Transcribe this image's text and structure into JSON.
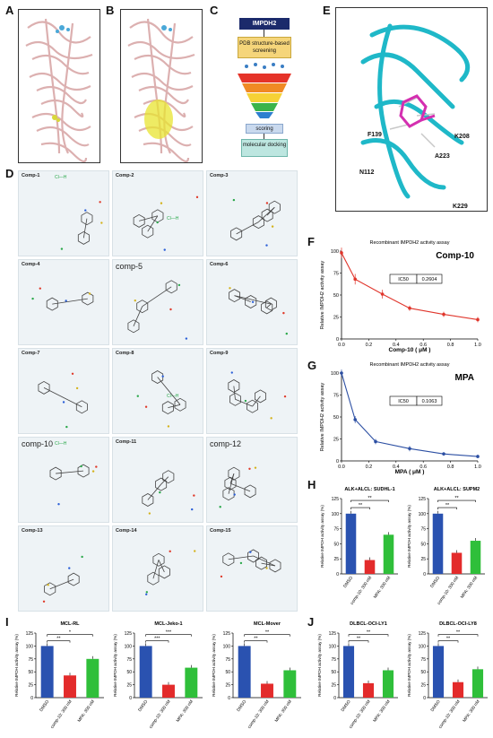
{
  "panel_labels": {
    "A": "A",
    "B": "B",
    "C": "C",
    "D": "D",
    "E": "E",
    "F": "F",
    "G": "G",
    "H": "H",
    "I": "I",
    "J": "J"
  },
  "flowchart": {
    "target": "IMPDH2",
    "step1": "PDB structure-based screening",
    "step2": "scoring",
    "step3": "molecular docking"
  },
  "residues": [
    "F139",
    "K208",
    "A223",
    "N112",
    "K229"
  ],
  "compounds": [
    {
      "name": "Comp-1",
      "salt": "Cl—H"
    },
    {
      "name": "Comp-2",
      "salt": "Cl—H"
    },
    {
      "name": "Comp-3",
      "salt": ""
    },
    {
      "name": "Comp-4",
      "salt": ""
    },
    {
      "name": "comp-5",
      "salt": ""
    },
    {
      "name": "Comp-6",
      "salt": ""
    },
    {
      "name": "Comp-7",
      "salt": ""
    },
    {
      "name": "Comp-8",
      "salt": "Cl—H"
    },
    {
      "name": "Comp-9",
      "salt": ""
    },
    {
      "name": "comp-10",
      "salt": "Cl—H"
    },
    {
      "name": "Comp-11",
      "salt": ""
    },
    {
      "name": "comp-12",
      "salt": ""
    },
    {
      "name": "Comp-13",
      "salt": ""
    },
    {
      "name": "Comp-14",
      "salt": ""
    },
    {
      "name": "Comp-15",
      "salt": ""
    }
  ],
  "chart_data": [
    {
      "id": "F",
      "type": "line",
      "title": "Recombinant IMPDH2 activity assay",
      "subtitle": "Comp-10",
      "xlabel": "Comp-10 ( μM )",
      "ylabel": "Relative IMPDH2 activity assay",
      "xlim": [
        0,
        1
      ],
      "ylim": [
        0,
        100
      ],
      "xticks": [
        "0.0",
        "0.2",
        "0.4",
        "0.6",
        "0.8",
        "1.0"
      ],
      "yticks": [
        "0",
        "25",
        "50",
        "75",
        "100"
      ],
      "x": [
        0,
        0.1,
        0.3,
        0.5,
        0.75,
        1.0
      ],
      "y": [
        98,
        68,
        51,
        35,
        28,
        22
      ],
      "err": [
        6,
        6,
        5,
        3,
        3,
        3
      ],
      "color": "#e0352b",
      "ic50_label": "IC50",
      "ic50_value": "0.2604"
    },
    {
      "id": "G",
      "type": "line",
      "title": "Recombinant IMPDH2 activity assay",
      "subtitle": "MPA",
      "xlabel": "MPA ( μM )",
      "ylabel": "Relative IMPDH2 activity assay",
      "xlim": [
        0,
        1
      ],
      "ylim": [
        0,
        100
      ],
      "xticks": [
        "0.0",
        "0.2",
        "0.4",
        "0.6",
        "0.8",
        "1.0"
      ],
      "yticks": [
        "0",
        "25",
        "50",
        "75",
        "100"
      ],
      "x": [
        0,
        0.1,
        0.25,
        0.5,
        0.75,
        1.0
      ],
      "y": [
        100,
        47,
        22,
        14,
        8,
        5
      ],
      "err": [
        4,
        4,
        3,
        3,
        2,
        2
      ],
      "color": "#2c4fa3",
      "ic50_label": "IC50",
      "ic50_value": "0.1063"
    },
    {
      "id": "H1",
      "type": "bar",
      "title": "ALK+ALCL: SUDHL-1",
      "ylabel": "Relative IMPDH activity assay (%)",
      "categories": [
        "DMSO",
        "comp-10: 300 nM",
        "MPA: 300 nM"
      ],
      "values": [
        100,
        23,
        65
      ],
      "sig": [
        "**",
        "**"
      ]
    },
    {
      "id": "H2",
      "type": "bar",
      "title": "ALK+ALCL: SUPM2",
      "ylabel": "Relative IMPDH activity assay (%)",
      "categories": [
        "DMSO",
        "comp-10: 300 nM",
        "MPA: 300 nM"
      ],
      "values": [
        100,
        35,
        55
      ],
      "sig": [
        "**",
        "**"
      ]
    },
    {
      "id": "I1",
      "type": "bar",
      "title": "MCL-RL",
      "ylabel": "Relative IMPDH activity assay (%)",
      "categories": [
        "DMSO",
        "comp-10: 300 nM",
        "MPA: 300 nM"
      ],
      "values": [
        100,
        43,
        75
      ],
      "sig": [
        "**",
        "*"
      ]
    },
    {
      "id": "I2",
      "type": "bar",
      "title": "MCL-Jeko-1",
      "ylabel": "Relative IMPDH activity assay (%)",
      "categories": [
        "DMSO",
        "comp-10: 300 nM",
        "MPA: 300 nM"
      ],
      "values": [
        100,
        25,
        58
      ],
      "sig": [
        "***",
        "***"
      ]
    },
    {
      "id": "I3",
      "type": "bar",
      "title": "MCL-Mover",
      "ylabel": "Relative IMPDH activity assay (%)",
      "categories": [
        "DMSO",
        "comp-10: 300 nM",
        "MPA: 300 nM"
      ],
      "values": [
        100,
        27,
        53
      ],
      "sig": [
        "**",
        "**"
      ]
    },
    {
      "id": "J1",
      "type": "bar",
      "title": "DLBCL-OCI-LY1",
      "ylabel": "Relative IMPDH activity assay (%)",
      "categories": [
        "DMSO",
        "comp-10: 300 nM",
        "MPA: 300 nM"
      ],
      "values": [
        100,
        28,
        53
      ],
      "sig": [
        "**",
        "**"
      ]
    },
    {
      "id": "J2",
      "type": "bar",
      "title": "DLBCL-OCI-LY8",
      "ylabel": "Relative IMPDH activity assay (%)",
      "categories": [
        "DMSO",
        "comp-10: 300 nM",
        "MPA: 300 nM"
      ],
      "values": [
        100,
        30,
        55
      ],
      "sig": [
        "**",
        "**"
      ]
    }
  ],
  "bar_colors": [
    "#2a52b0",
    "#e32b2b",
    "#2fbf3a"
  ],
  "bar_yticks": [
    "0",
    "25",
    "50",
    "75",
    "100",
    "125"
  ]
}
